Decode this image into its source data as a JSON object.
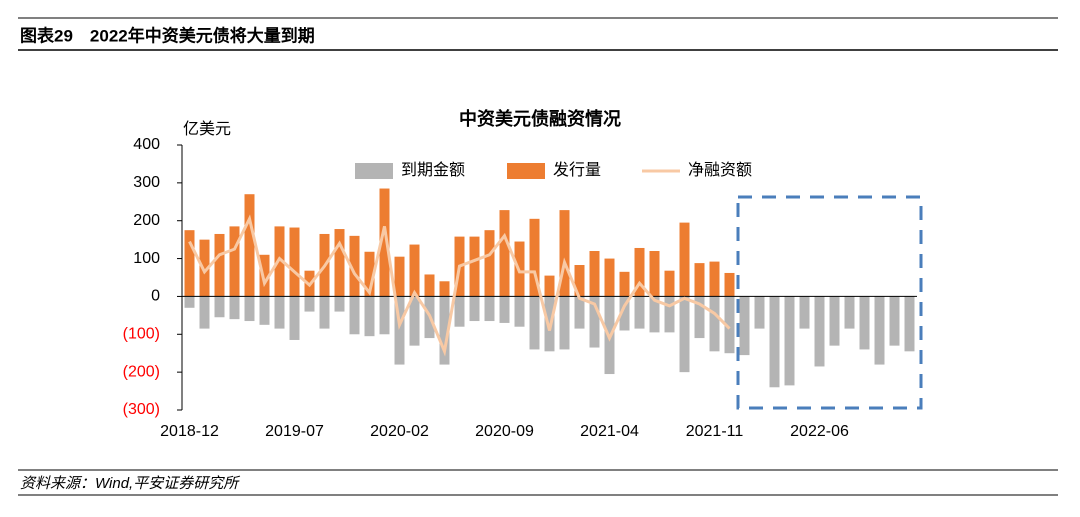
{
  "header": {
    "title": "图表29　2022年中资美元债将大量到期"
  },
  "footer": {
    "source": "资料来源：Wind,平安证券研究所"
  },
  "chart_data": {
    "type": "bar",
    "title": "中资美元债融资情况",
    "y_axis_label": "亿美元",
    "categories": [
      "2018-12",
      null,
      null,
      null,
      null,
      null,
      null,
      "2019-07",
      null,
      null,
      null,
      null,
      null,
      null,
      "2020-02",
      null,
      null,
      null,
      null,
      null,
      null,
      "2020-09",
      null,
      null,
      null,
      null,
      null,
      null,
      "2021-04",
      null,
      null,
      null,
      null,
      null,
      null,
      "2021-11",
      null,
      null,
      null,
      null,
      null,
      null,
      "2022-06",
      null,
      null,
      null,
      null,
      null,
      null
    ],
    "series": [
      {
        "name": "到期金额",
        "type": "bar",
        "color": "#b4b4b4",
        "values": [
          -30,
          -85,
          -55,
          -60,
          -65,
          -75,
          -85,
          -115,
          -40,
          -85,
          -40,
          -100,
          -105,
          -100,
          -180,
          -130,
          -110,
          -180,
          -80,
          -65,
          -65,
          -70,
          -80,
          -140,
          -145,
          -140,
          -85,
          -135,
          -205,
          -90,
          -85,
          -95,
          -95,
          -200,
          -110,
          -145,
          -150,
          -155,
          -85,
          -240,
          -235,
          -85,
          -185,
          -130,
          -85,
          -140,
          -180,
          -130,
          -145
        ]
      },
      {
        "name": "发行量",
        "type": "bar",
        "color": "#ed7d31",
        "values": [
          175,
          150,
          165,
          185,
          270,
          110,
          185,
          182,
          68,
          165,
          178,
          160,
          118,
          285,
          105,
          137,
          58,
          40,
          158,
          158,
          175,
          228,
          145,
          205,
          55,
          228,
          83,
          120,
          100,
          65,
          128,
          120,
          68,
          195,
          88,
          92,
          62,
          null,
          null,
          null,
          null,
          null,
          null,
          null,
          null,
          null,
          null,
          null,
          null
        ]
      },
      {
        "name": "净融资额",
        "type": "line",
        "color": "#f8c9a4",
        "values": [
          145,
          65,
          110,
          125,
          205,
          35,
          100,
          65,
          30,
          80,
          140,
          60,
          10,
          185,
          -75,
          10,
          -50,
          -145,
          80,
          95,
          110,
          160,
          65,
          65,
          -90,
          90,
          -5,
          -20,
          -110,
          -25,
          35,
          -10,
          -25,
          -5,
          -20,
          -45,
          -85,
          null,
          null,
          null,
          null,
          null,
          null,
          null,
          null,
          null,
          null,
          null,
          null
        ]
      }
    ],
    "ylim": [
      -300,
      400
    ],
    "yticks": [
      400,
      300,
      200,
      100,
      0,
      {
        "value": -100,
        "label": "(100)"
      },
      {
        "value": -200,
        "label": "(200)"
      },
      {
        "value": -300,
        "label": "(300)"
      }
    ],
    "negative_tick_color": "#ff0000",
    "legend": "top"
  }
}
